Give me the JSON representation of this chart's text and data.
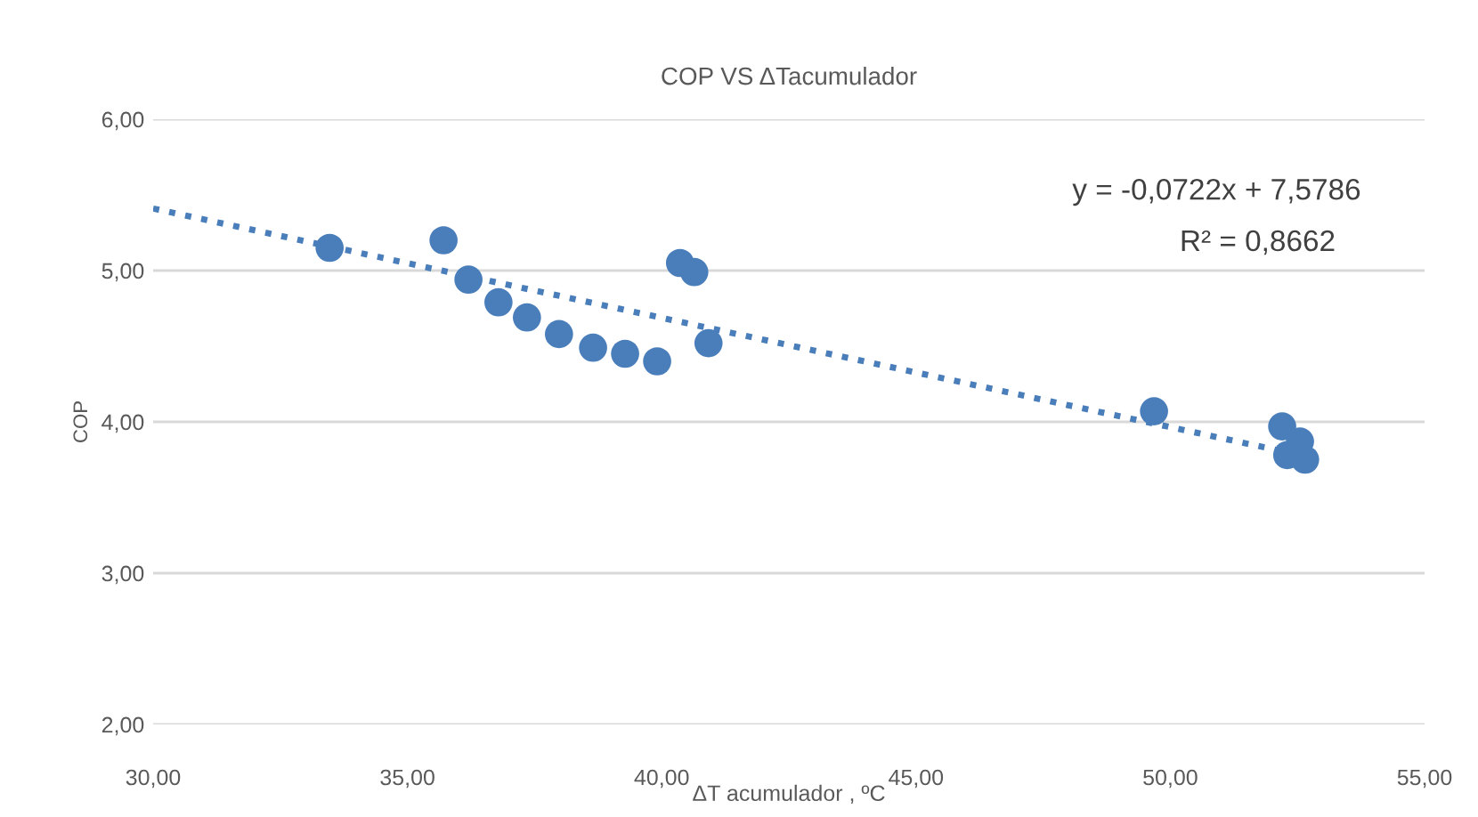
{
  "chart_data": {
    "type": "scatter",
    "title": "COP VS ΔTacumulador",
    "xlabel": "ΔT acumulador , ºC",
    "ylabel": "COP",
    "annotations": [
      "y = -0,0722x + 7,5786",
      "R² = 0,8662"
    ],
    "series": [
      {
        "color": "#4a7ebb",
        "marker": "circle",
        "x": [
          33.47,
          35.71,
          36.2,
          36.79,
          37.35,
          37.98,
          38.65,
          39.28,
          39.91,
          40.36,
          40.64,
          40.92,
          49.68,
          52.2,
          52.25,
          52.3,
          52.55,
          52.65
        ],
        "values": [
          5.15,
          5.2,
          4.94,
          4.79,
          4.69,
          4.58,
          4.49,
          4.45,
          4.4,
          5.05,
          4.99,
          4.52,
          4.07,
          3.97,
          null,
          3.78,
          3.87,
          3.75
        ]
      },
      {
        "type": "line",
        "color": "#4a7ebb",
        "line_style": "dotted",
        "marker": "none",
        "x": [
          30,
          52.7
        ],
        "values": [
          5.41,
          3.77
        ]
      }
    ],
    "xlim": [
      30,
      55
    ],
    "xticks": [
      {
        "value": 30,
        "label": "30,00"
      },
      {
        "value": 35,
        "label": "35,00"
      },
      {
        "value": 40,
        "label": "40,00"
      },
      {
        "value": 45,
        "label": "45,00"
      },
      {
        "value": 50,
        "label": "50,00"
      },
      {
        "value": 55,
        "label": "55,00"
      }
    ],
    "ylim": [
      2,
      6
    ],
    "yticks": [
      {
        "value": 2,
        "label": "2,00"
      },
      {
        "value": 3,
        "label": "3,00"
      },
      {
        "value": 4,
        "label": "4,00"
      },
      {
        "value": 5,
        "label": "5,00"
      },
      {
        "value": 6,
        "label": "6,00"
      }
    ],
    "grid": "y",
    "legend": false
  }
}
